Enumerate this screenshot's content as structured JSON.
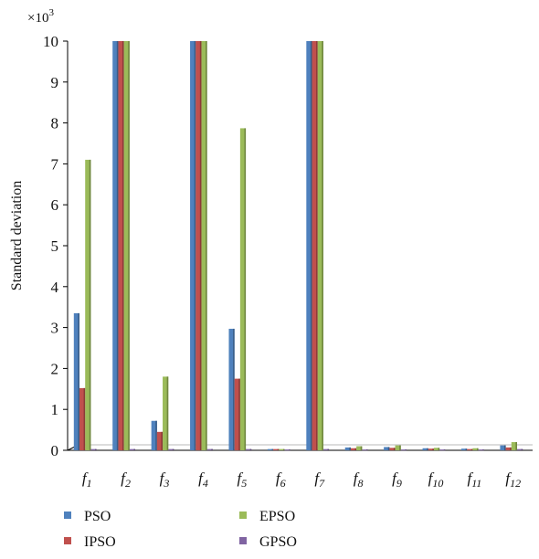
{
  "chart_data": {
    "type": "bar",
    "ylabel": "Standard deviation",
    "y_multiplier_label": "×10",
    "y_multiplier_exponent": "3",
    "ylim": [
      0,
      10
    ],
    "yticks": [
      "0",
      "1",
      "2",
      "3",
      "4",
      "5",
      "6",
      "7",
      "8",
      "9",
      "10"
    ],
    "categories": [
      "f1",
      "f2",
      "f3",
      "f4",
      "f5",
      "f6",
      "f7",
      "f8",
      "f9",
      "f10",
      "f11",
      "f12"
    ],
    "category_base": "f",
    "category_subscripts": [
      "1",
      "2",
      "3",
      "4",
      "5",
      "6",
      "7",
      "8",
      "9",
      "10",
      "11",
      "12"
    ],
    "series": [
      {
        "name": "PSO",
        "color": "#4f81bd",
        "values": [
          3.35,
          10.0,
          0.72,
          10.0,
          2.97,
          0.03,
          10.0,
          0.07,
          0.08,
          0.05,
          0.04,
          0.12
        ]
      },
      {
        "name": "IPSO",
        "color": "#c0504d",
        "values": [
          1.52,
          10.0,
          0.45,
          10.0,
          1.75,
          0.03,
          10.0,
          0.05,
          0.06,
          0.04,
          0.03,
          0.07
        ]
      },
      {
        "name": "EPSO",
        "color": "#9bbb59",
        "values": [
          7.1,
          10.0,
          1.8,
          10.0,
          7.87,
          0.03,
          10.0,
          0.1,
          0.12,
          0.06,
          0.05,
          0.2
        ]
      },
      {
        "name": "GPSO",
        "color": "#8064a2",
        "values": [
          0.03,
          0.03,
          0.03,
          0.03,
          0.03,
          0.02,
          0.03,
          0.02,
          0.02,
          0.02,
          0.02,
          0.03
        ]
      }
    ],
    "grid": false,
    "legend_position": "bottom-left"
  }
}
